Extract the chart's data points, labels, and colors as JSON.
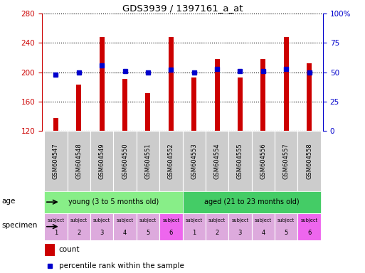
{
  "title": "GDS3939 / 1397161_a_at",
  "samples": [
    "GSM604547",
    "GSM604548",
    "GSM604549",
    "GSM604550",
    "GSM604551",
    "GSM604552",
    "GSM604553",
    "GSM604554",
    "GSM604555",
    "GSM604556",
    "GSM604557",
    "GSM604558"
  ],
  "counts": [
    138,
    183,
    248,
    191,
    172,
    248,
    193,
    218,
    193,
    218,
    248,
    212
  ],
  "percentile_ranks": [
    48,
    50,
    56,
    51,
    50,
    52,
    50,
    53,
    51,
    51,
    53,
    50
  ],
  "ylim_left": [
    120,
    280
  ],
  "ylim_right": [
    0,
    100
  ],
  "yticks_left": [
    120,
    160,
    200,
    240,
    280
  ],
  "yticks_right": [
    0,
    25,
    50,
    75,
    100
  ],
  "bar_color": "#cc0000",
  "dot_color": "#0000cc",
  "age_young_label": "young (3 to 5 months old)",
  "age_aged_label": "aged (21 to 23 months old)",
  "age_young_color": "#88ee88",
  "age_aged_color": "#44cc66",
  "specimen_colors": [
    "#ddaadd",
    "#ddaadd",
    "#ddaadd",
    "#ddaadd",
    "#ddaadd",
    "#ee66ee",
    "#ddaadd",
    "#ddaadd",
    "#ddaadd",
    "#ddaadd",
    "#ddaadd",
    "#ee66ee"
  ],
  "specimen_numbers": [
    1,
    2,
    3,
    4,
    5,
    6,
    1,
    2,
    3,
    4,
    5,
    6
  ],
  "left_axis_color": "#cc0000",
  "right_axis_color": "#0000cc",
  "legend_count_label": "count",
  "legend_percentile_label": "percentile rank within the sample",
  "age_label": "age",
  "specimen_label": "specimen",
  "sample_bg_color": "#cccccc",
  "fig_width": 5.13,
  "fig_height": 3.84,
  "dpi": 100
}
